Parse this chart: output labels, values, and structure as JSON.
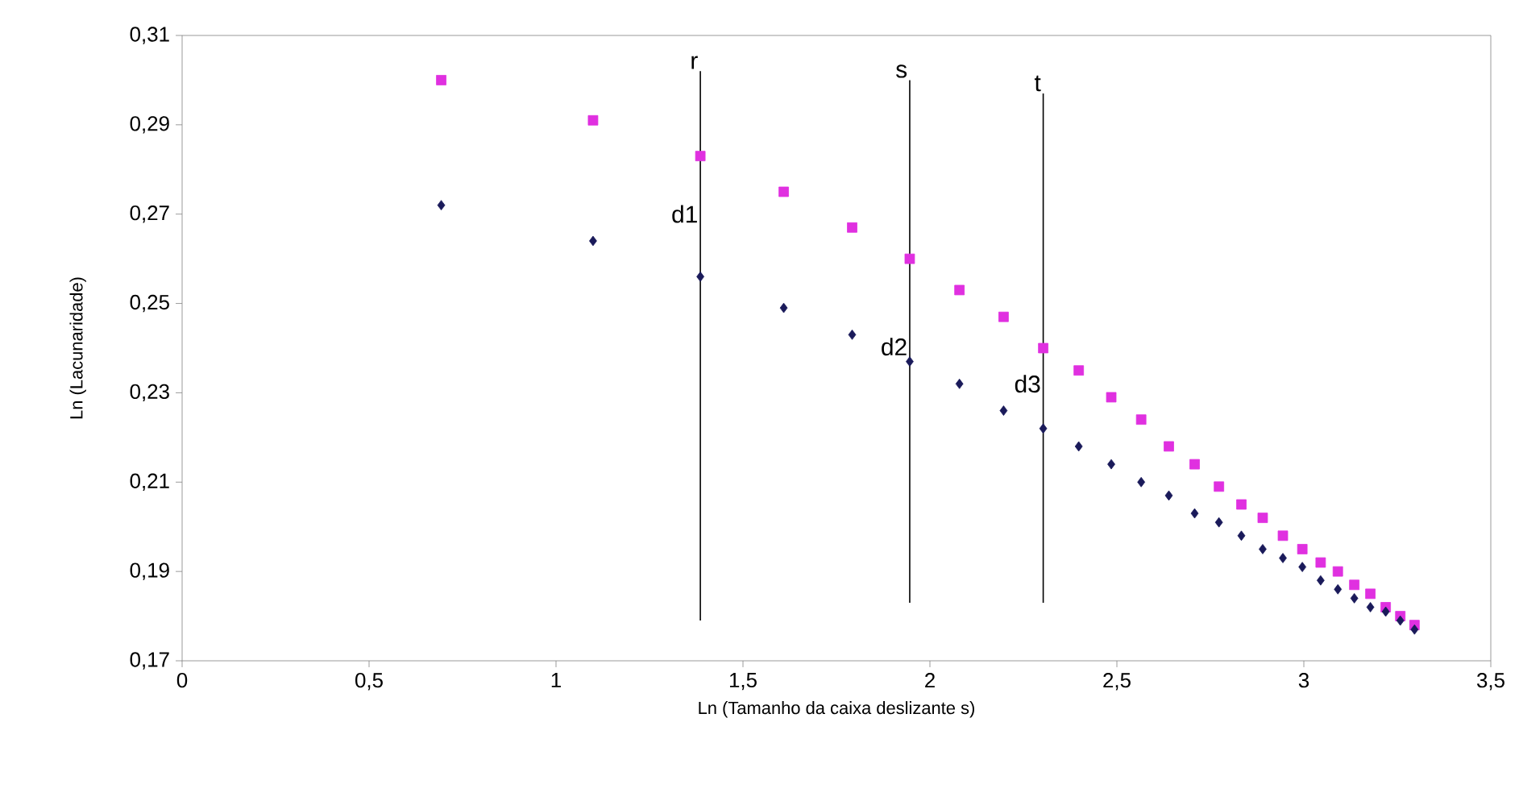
{
  "chart_data": {
    "type": "scatter",
    "xlabel": "Ln (Tamanho da caixa deslizante s)",
    "ylabel": "Ln (Lacunaridade)",
    "xlim": [
      0,
      3.5
    ],
    "ylim": [
      0.17,
      0.31
    ],
    "xticks": [
      {
        "value": 0,
        "label": "0"
      },
      {
        "value": 0.5,
        "label": "0,5"
      },
      {
        "value": 1,
        "label": "1"
      },
      {
        "value": 1.5,
        "label": "1,5"
      },
      {
        "value": 2,
        "label": "2"
      },
      {
        "value": 2.5,
        "label": "2,5"
      },
      {
        "value": 3,
        "label": "3"
      },
      {
        "value": 3.5,
        "label": "3,5"
      }
    ],
    "yticks": [
      {
        "value": 0.17,
        "label": "0,17"
      },
      {
        "value": 0.19,
        "label": "0,19"
      },
      {
        "value": 0.21,
        "label": "0,21"
      },
      {
        "value": 0.23,
        "label": "0,23"
      },
      {
        "value": 0.25,
        "label": "0,25"
      },
      {
        "value": 0.27,
        "label": "0,27"
      },
      {
        "value": 0.29,
        "label": "0,29"
      },
      {
        "value": 0.31,
        "label": "0,31"
      }
    ],
    "series": [
      {
        "marker": "square",
        "color": "#e030e0",
        "x": [
          0.693,
          1.099,
          1.386,
          1.609,
          1.792,
          1.946,
          2.079,
          2.197,
          2.303,
          2.398,
          2.485,
          2.565,
          2.639,
          2.708,
          2.773,
          2.833,
          2.89,
          2.944,
          2.996,
          3.045,
          3.091,
          3.135,
          3.178,
          3.219,
          3.258,
          3.296
        ],
        "values": [
          0.3,
          0.291,
          0.283,
          0.275,
          0.267,
          0.26,
          0.253,
          0.247,
          0.24,
          0.235,
          0.229,
          0.224,
          0.218,
          0.214,
          0.209,
          0.205,
          0.202,
          0.198,
          0.195,
          0.192,
          0.19,
          0.187,
          0.185,
          0.182,
          0.18,
          0.178
        ]
      },
      {
        "marker": "diamond",
        "color": "#1a1a5a",
        "x": [
          0.693,
          1.099,
          1.386,
          1.609,
          1.792,
          1.946,
          2.079,
          2.197,
          2.303,
          2.398,
          2.485,
          2.565,
          2.639,
          2.708,
          2.773,
          2.833,
          2.89,
          2.944,
          2.996,
          3.045,
          3.091,
          3.135,
          3.178,
          3.219,
          3.258,
          3.296
        ],
        "values": [
          0.272,
          0.264,
          0.256,
          0.249,
          0.243,
          0.237,
          0.232,
          0.226,
          0.222,
          0.218,
          0.214,
          0.21,
          0.207,
          0.203,
          0.201,
          0.198,
          0.195,
          0.193,
          0.191,
          0.188,
          0.186,
          0.184,
          0.182,
          0.181,
          0.179,
          0.177
        ]
      },
      {
        "type": "line",
        "marker": "none",
        "line_style": "solid",
        "name": "r",
        "color": "#000000",
        "x": [
          1.386,
          1.386
        ],
        "values": [
          0.179,
          0.302
        ]
      },
      {
        "type": "line",
        "marker": "none",
        "line_style": "solid",
        "name": "s",
        "color": "#000000",
        "x": [
          1.946,
          1.946
        ],
        "values": [
          0.183,
          0.3
        ]
      },
      {
        "type": "line",
        "marker": "none",
        "line_style": "solid",
        "name": "t",
        "color": "#000000",
        "x": [
          2.303,
          2.303
        ],
        "values": [
          0.183,
          0.297
        ]
      }
    ],
    "annotations": [
      "d1",
      "d2",
      "d3"
    ]
  }
}
